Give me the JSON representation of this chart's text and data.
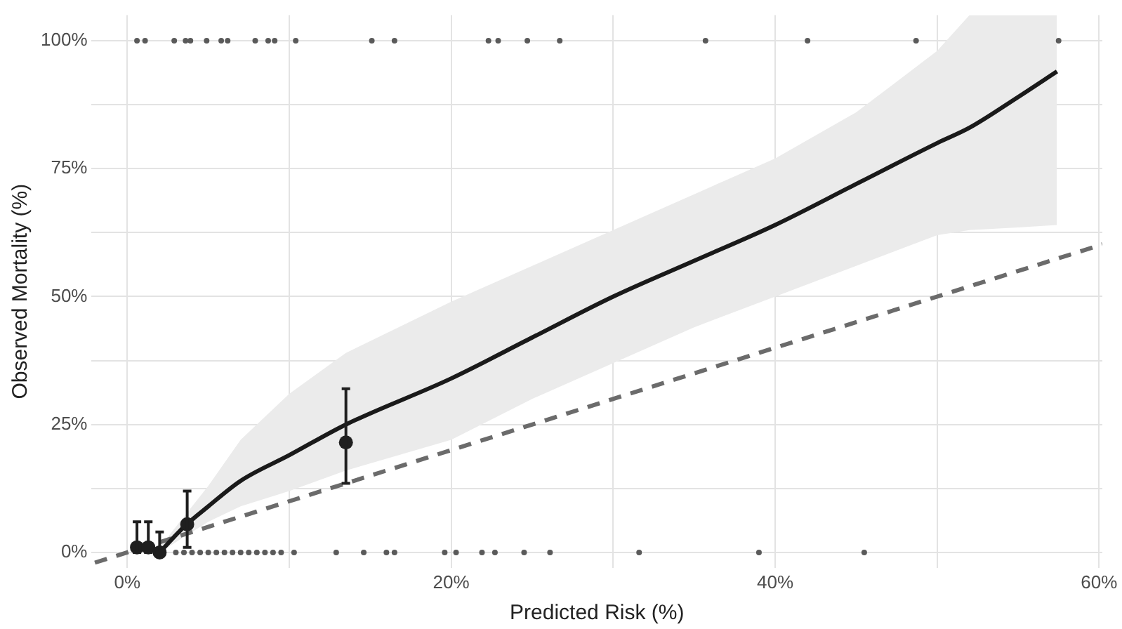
{
  "chart_data": {
    "type": "line",
    "xlabel": "Predicted Risk (%)",
    "ylabel": "Observed Mortality (%)",
    "xlim": [
      -2.2,
      60.2
    ],
    "ylim": [
      -3,
      105
    ],
    "xticks": [
      {
        "value": 0,
        "label": "0%"
      },
      {
        "value": 10,
        "label": null
      },
      {
        "value": 20,
        "label": "20%"
      },
      {
        "value": 30,
        "label": null
      },
      {
        "value": 40,
        "label": "40%"
      },
      {
        "value": 50,
        "label": null
      },
      {
        "value": 60,
        "label": "60%"
      }
    ],
    "yticks": [
      {
        "value": 0,
        "label": "0%"
      },
      {
        "value": 12.5,
        "label": null
      },
      {
        "value": 25,
        "label": "25%"
      },
      {
        "value": 37.5,
        "label": null
      },
      {
        "value": 50,
        "label": "50%"
      },
      {
        "value": 62.5,
        "label": null
      },
      {
        "value": 75,
        "label": "75%"
      },
      {
        "value": 87.5,
        "label": null
      },
      {
        "value": 100,
        "label": "100%"
      }
    ],
    "grid": true,
    "series": [
      {
        "color": "#1a1a1a",
        "marker": "none",
        "line_style": "solid",
        "x": [
          2,
          3.5,
          5,
          7,
          10,
          13.5,
          20,
          25,
          30,
          35,
          40,
          45,
          50,
          52,
          55,
          57.4
        ],
        "values": [
          0,
          5,
          9,
          14,
          19,
          25,
          34,
          42,
          50,
          57,
          64,
          72,
          80,
          83,
          89,
          94
        ],
        "lower": [
          0,
          3,
          6,
          9,
          12,
          16,
          22,
          30,
          37,
          44,
          50,
          56,
          62,
          63,
          63.5,
          64
        ],
        "upper": [
          1,
          7,
          13,
          22,
          31,
          39,
          49,
          56,
          63,
          70,
          77,
          86,
          98,
          105,
          105,
          105
        ]
      },
      {
        "color": "#6b6b6b",
        "marker": "none",
        "line_style": "dashed",
        "x": [
          -2,
          60.2
        ],
        "values": [
          -2,
          60.2
        ]
      },
      {
        "type": "scatter",
        "color": "#5a5a5a",
        "marker": "circle",
        "x": [
          0.6,
          1.1,
          2.9,
          3.6,
          3.9,
          4.9,
          5.8,
          6.2,
          7.9,
          8.7,
          9.1,
          10.4,
          15.1,
          16.5,
          22.3,
          22.9,
          24.7,
          26.7,
          35.7,
          42,
          48.7,
          57.5
        ],
        "values": [
          100,
          100,
          100,
          100,
          100,
          100,
          100,
          100,
          100,
          100,
          100,
          100,
          100,
          100,
          100,
          100,
          100,
          100,
          100,
          100,
          100,
          100
        ]
      },
      {
        "type": "scatter",
        "color": "#5a5a5a",
        "marker": "circle",
        "x": [
          3,
          3.5,
          4,
          4.5,
          5,
          5.5,
          6,
          6.5,
          7,
          7.5,
          8,
          8.5,
          9,
          9.5,
          10.3,
          12.9,
          14.6,
          16,
          16.5,
          19.6,
          20.3,
          21.9,
          22.7,
          24.5,
          26.1,
          31.6,
          39,
          45.5
        ],
        "values": [
          0,
          0,
          0,
          0,
          0,
          0,
          0,
          0,
          0,
          0,
          0,
          0,
          0,
          0,
          0,
          0,
          0,
          0,
          0,
          0,
          0,
          0,
          0,
          0,
          0,
          0,
          0,
          0
        ]
      },
      {
        "type": "scatter",
        "color": "#1f1f1f",
        "marker": "circle",
        "x": [
          0.6,
          1.3,
          2,
          3.7,
          13.5
        ],
        "values": [
          1,
          1,
          0,
          5.5,
          21.5
        ],
        "errors": [
          [
            0,
            6
          ],
          [
            0,
            6
          ],
          [
            0,
            4
          ],
          [
            1,
            12
          ],
          [
            13.5,
            32
          ]
        ]
      }
    ]
  }
}
